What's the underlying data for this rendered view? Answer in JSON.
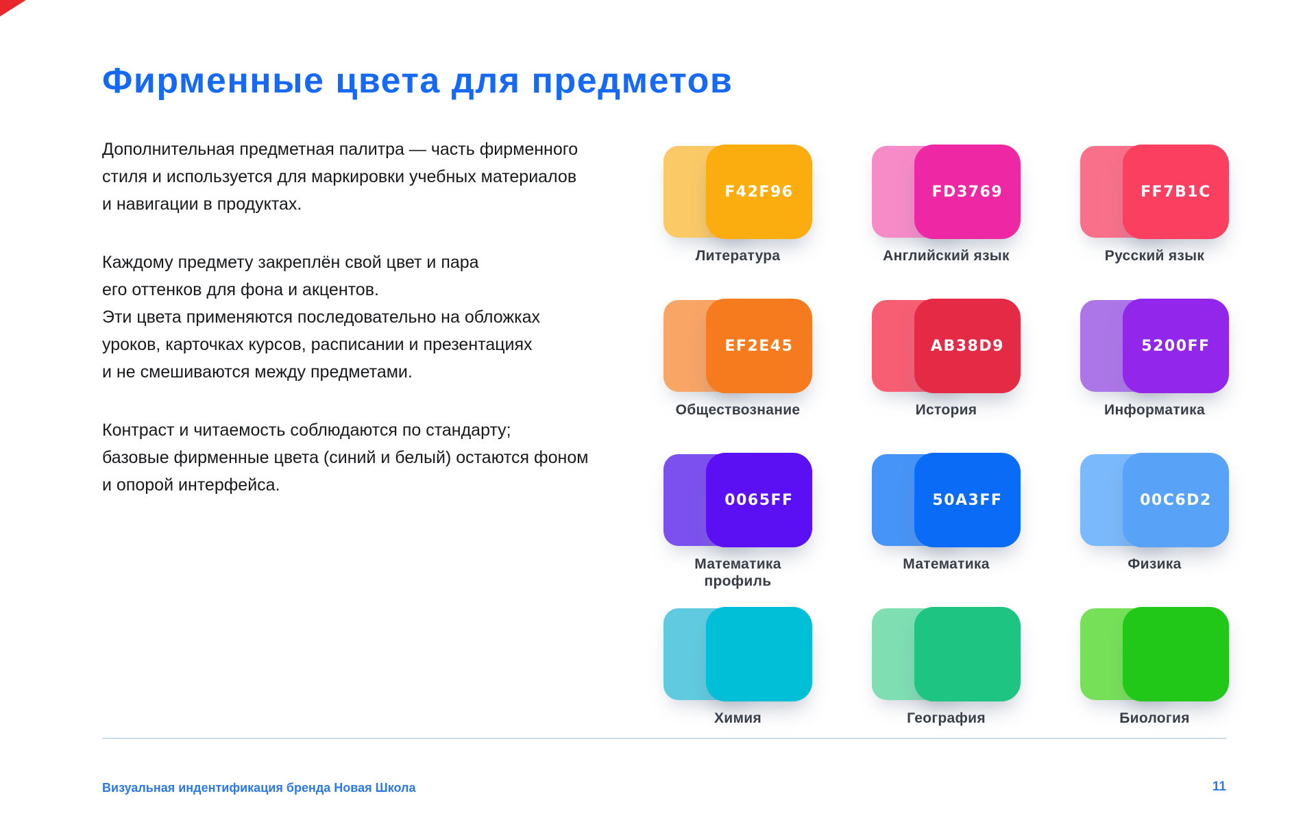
{
  "title": "Фирменные цвета для предметов",
  "intro": {
    "paragraphs": [
      [
        "Дополнительная предметная палитра — часть фирменного",
        "стиля и используется для маркировки учебных материалов",
        "и навигации в продуктах."
      ],
      [
        "Каждому предмету закреплён свой цвет и пара",
        "его оттенков для фона и акцентов.",
        "Эти цвета применяются последовательно на обложках",
        "уроков, карточках курсов, расписании и презентациях",
        "и не смешиваются между предметами."
      ],
      [
        "Контраст и читаемость соблюдаются по стандарту;",
        "базовые фирменные цвета (синий и белый) остаются фоном",
        "и опорой интерфейса."
      ]
    ]
  },
  "palette": [
    {
      "subject": "Литература",
      "hex_label": "F42F96",
      "light_color": "#FBCA67",
      "main_color": "#FBAC0F"
    },
    {
      "subject": "Английский язык",
      "hex_label": "FD3769",
      "light_color": "#F78BC8",
      "main_color": "#EE27A5"
    },
    {
      "subject": "Русский язык",
      "hex_label": "FF7B1C",
      "light_color": "#F9708A",
      "main_color": "#FA3F61"
    },
    {
      "subject": "Обществознание",
      "hex_label": "EF2E45",
      "light_color": "#F9A566",
      "main_color": "#F67B1F"
    },
    {
      "subject": "История",
      "hex_label": "AB38D9",
      "light_color": "#F75E73",
      "main_color": "#E52A45"
    },
    {
      "subject": "Информатика",
      "hex_label": "5200FF",
      "light_color": "#AC76E9",
      "main_color": "#9227EB"
    },
    {
      "subject": "Математика\nпрофиль",
      "hex_label": "0065FF",
      "light_color": "#7B50EE",
      "main_color": "#5B0FF3"
    },
    {
      "subject": "Математика",
      "hex_label": "50A3FF",
      "light_color": "#4694F7",
      "main_color": "#0A6CF6"
    },
    {
      "subject": "Физика",
      "hex_label": "00C6D2",
      "light_color": "#7AB9FB",
      "main_color": "#58A3F8"
    },
    {
      "subject": "Химия",
      "hex_label": "",
      "light_color": "#60CBE0",
      "main_color": "#02BFD8"
    },
    {
      "subject": "География",
      "hex_label": "",
      "light_color": "#7FDFB3",
      "main_color": "#1EC482"
    },
    {
      "subject": "Биология",
      "hex_label": "",
      "light_color": "#76E158",
      "main_color": "#22C818"
    }
  ],
  "footer": {
    "left_text": "Визуальная индентификация бренда Новая Школа",
    "page_number": "11"
  },
  "theme": {
    "accent_blue": "#1569F3",
    "body_text": "#17191D",
    "label_dark": "#363B44",
    "divider": "#CBDDE9",
    "corner_red": "#E8262B"
  }
}
